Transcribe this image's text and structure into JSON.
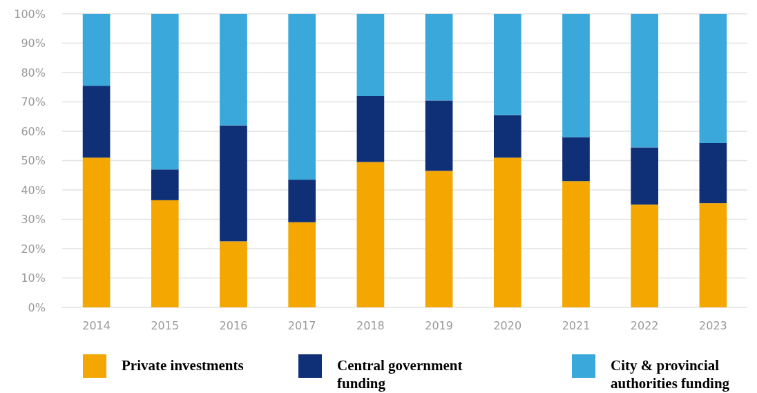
{
  "chart_data": {
    "type": "bar",
    "stacked": true,
    "categories": [
      "2014",
      "2015",
      "2016",
      "2017",
      "2018",
      "2019",
      "2020",
      "2021",
      "2022",
      "2023"
    ],
    "series": [
      {
        "name": "Private investments",
        "color": "#f4a700",
        "values": [
          51,
          36.5,
          22.5,
          29,
          49.5,
          46.5,
          51,
          43,
          35,
          35.5
        ]
      },
      {
        "name": "Central government funding",
        "color": "#0f3076",
        "values": [
          24.5,
          10.5,
          39.5,
          14.5,
          22.5,
          24,
          14.5,
          15,
          19.5,
          20.5
        ]
      },
      {
        "name": "City & provincial authorities funding",
        "color": "#3ba8db",
        "values": [
          24.5,
          53,
          38,
          56.5,
          28,
          29.5,
          34.5,
          42,
          45.5,
          44
        ]
      }
    ],
    "ylim": [
      0,
      100
    ],
    "yticks": [
      {
        "value": 0,
        "label": "0%"
      },
      {
        "value": 10,
        "label": "10%"
      },
      {
        "value": 20,
        "label": "20%"
      },
      {
        "value": 30,
        "label": "30%"
      },
      {
        "value": 40,
        "label": "40%"
      },
      {
        "value": 50,
        "label": "50%"
      },
      {
        "value": 60,
        "label": "60%"
      },
      {
        "value": 70,
        "label": "70%"
      },
      {
        "value": 80,
        "label": "80%"
      },
      {
        "value": 90,
        "label": "90%"
      },
      {
        "value": 100,
        "label": "100%"
      }
    ],
    "grid": "y",
    "legend": "bottom"
  }
}
